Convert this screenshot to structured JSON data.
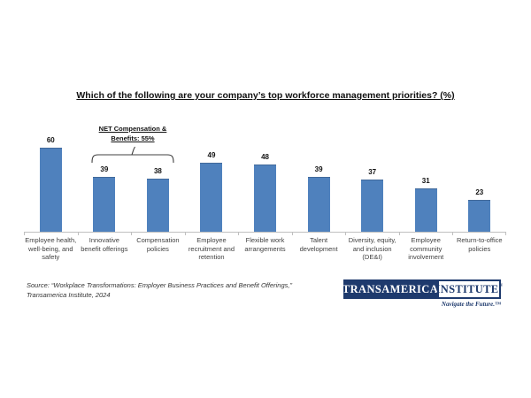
{
  "title": "Which of the following are your company’s top workforce management priorities? (%)",
  "chart_data": {
    "type": "bar",
    "title": "Which of the following are your company’s top workforce management priorities? (%)",
    "categories": [
      "Employee health,\nwell-being, and\nsafety",
      "Innovative\nbenefit offerings",
      "Compensation\npolicies",
      "Employee\nrecruitment and\nretention",
      "Flexible work\narrangements",
      "Talent\ndevelopment",
      "Diversity, equity,\nand inclusion\n(DE&I)",
      "Employee\ncommunity\ninvolvement",
      "Return-to-office\npolicies"
    ],
    "values": [
      60,
      39,
      38,
      49,
      48,
      39,
      37,
      31,
      23
    ],
    "ylim": [
      0,
      65
    ],
    "grid": false,
    "legend": "none",
    "bar_color": "#4F81BD",
    "annotation": {
      "label": "NET Compensation &\nBenefits: 55%",
      "net_value": 55,
      "spans_categories": [
        "Innovative benefit offerings",
        "Compensation policies"
      ]
    }
  },
  "source": {
    "text": "Source: “Workplace Transformations: Employer Business Practices and Benefit Offerings,”\nTransamerica Institute,  2024"
  },
  "logo": {
    "primary": "TRANSAMERICA",
    "secondary": "INSTITUTE",
    "registered_mark": "®",
    "tagline": "Navigate the Future.™"
  }
}
